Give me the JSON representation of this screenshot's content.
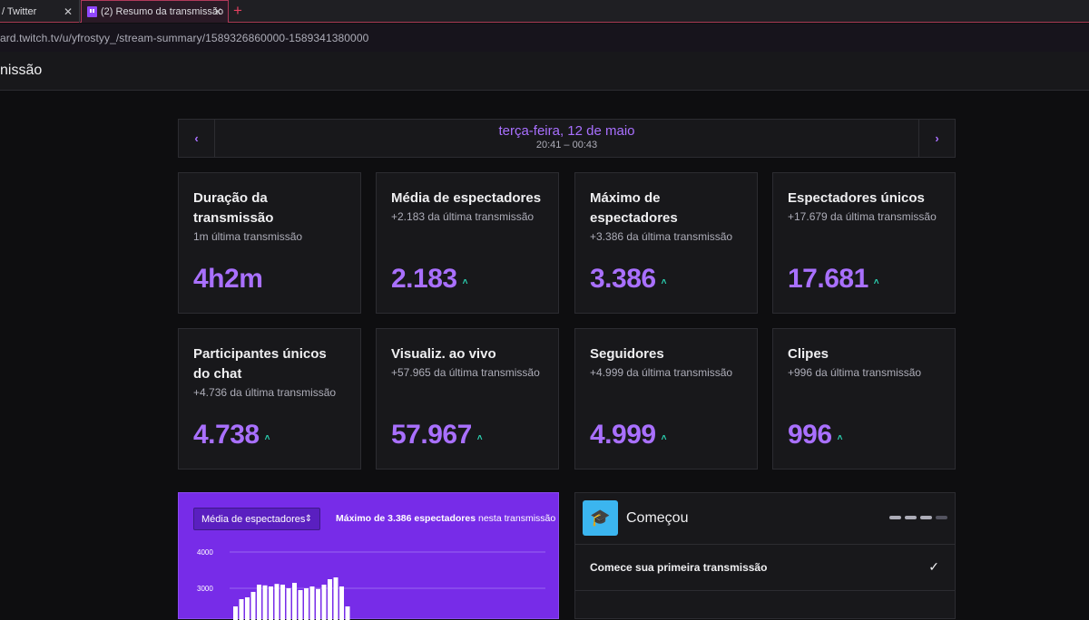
{
  "browser": {
    "tabs": [
      {
        "title": "/ Twitter",
        "close": "✕"
      },
      {
        "title": "(2) Resumo da transmissão",
        "close": "✕"
      }
    ],
    "new_tab": "+",
    "url": "ard.twitch.tv/u/yfrostyy_/stream-summary/1589326860000-1589341380000"
  },
  "header": {
    "title": "nissão"
  },
  "date_nav": {
    "prev": "‹",
    "next": "›",
    "date": "terça-feira, 12 de maio",
    "time_range": "20:41 – 00:43"
  },
  "stats": [
    {
      "title": "Duração da transmissão",
      "sub": "1m última transmissão",
      "value": "4h2m",
      "trend": ""
    },
    {
      "title": "Média de espectadores",
      "sub": "+2.183 da última transmissão",
      "value": "2.183",
      "trend": "up"
    },
    {
      "title": "Máximo de espectadores",
      "sub": "+3.386 da última transmissão",
      "value": "3.386",
      "trend": "up"
    },
    {
      "title": "Espectadores únicos",
      "sub": "+17.679 da última transmissão",
      "value": "17.681",
      "trend": "up"
    },
    {
      "title": "Participantes únicos do chat",
      "sub": "+4.736 da última transmissão",
      "value": "4.738",
      "trend": "up"
    },
    {
      "title": "Visualiz. ao vivo",
      "sub": "+57.965 da última transmissão",
      "value": "57.967",
      "trend": "up"
    },
    {
      "title": "Seguidores",
      "sub": "+4.999 da última transmissão",
      "value": "4.999",
      "trend": "up"
    },
    {
      "title": "Clipes",
      "sub": "+996 da última transmissão",
      "value": "996",
      "trend": "up"
    }
  ],
  "trend_glyph": "˄",
  "chart_panel": {
    "selected_metric": "Média de espectadores",
    "caption_bold": "Máximo de 3.386 espectadores",
    "caption_rest": " nesta transmissão"
  },
  "chart_data": {
    "type": "bar",
    "y_ticks": [
      "4000",
      "3000"
    ],
    "ylim": [
      0,
      4000
    ],
    "values": [
      2500,
      2700,
      2750,
      2900,
      3100,
      3080,
      3050,
      3120,
      3100,
      3000,
      3150,
      2950,
      3000,
      3050,
      2980,
      3100,
      3250,
      3300,
      3050,
      2500
    ],
    "color": "#ffffff"
  },
  "start_panel": {
    "icon": "graduation-cap-icon",
    "title": "Começou",
    "progress": [
      true,
      true,
      true,
      false
    ],
    "items": [
      {
        "label": "Comece sua primeira transmissão",
        "done": "✓"
      }
    ]
  },
  "colors": {
    "accent": "#a970ff",
    "trend_up": "#2bd8b6",
    "chart_bg": "#772ce8"
  }
}
